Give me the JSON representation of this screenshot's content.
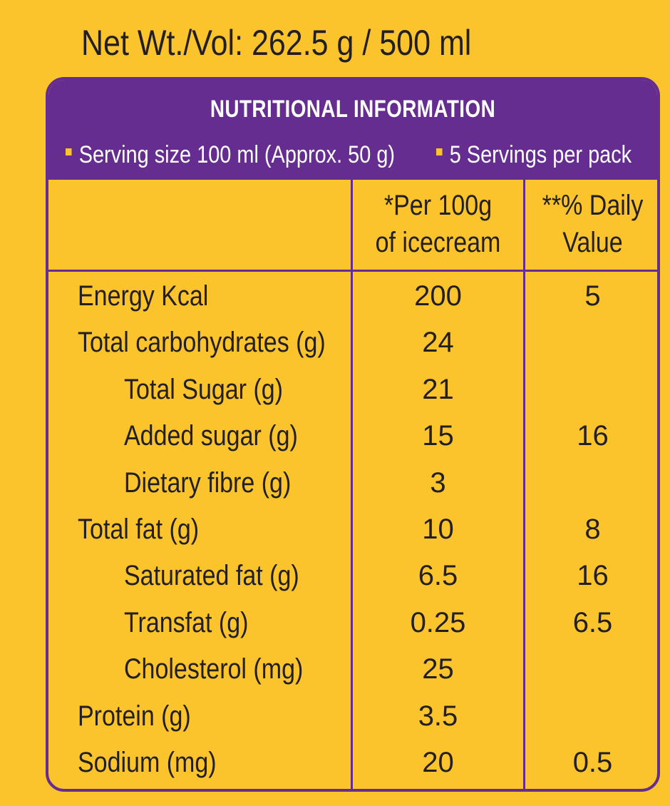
{
  "net_weight": "Net Wt./Vol: 262.5 g / 500 ml",
  "panel": {
    "title": "NUTRITIONAL INFORMATION",
    "serving_size": "Serving size 100 ml (Approx. 50 g)",
    "servings_per_pack": "5 Servings per pack"
  },
  "columns": {
    "per100_line1": "*Per 100g",
    "per100_line2": "of icecream",
    "dv_line1": "**% Daily",
    "dv_line2": "Value"
  },
  "rows": [
    {
      "label": "Energy Kcal",
      "per100": "200",
      "dv": "5",
      "indent": false
    },
    {
      "label": "Total carbohydrates (g)",
      "per100": "24",
      "dv": "",
      "indent": false
    },
    {
      "label": "Total Sugar (g)",
      "per100": "21",
      "dv": "",
      "indent": true
    },
    {
      "label": "Added sugar (g)",
      "per100": "15",
      "dv": "16",
      "indent": true
    },
    {
      "label": "Dietary fibre (g)",
      "per100": "3",
      "dv": "",
      "indent": true
    },
    {
      "label": "Total fat (g)",
      "per100": "10",
      "dv": "8",
      "indent": false
    },
    {
      "label": "Saturated fat (g)",
      "per100": "6.5",
      "dv": "16",
      "indent": true
    },
    {
      "label": "Transfat (g)",
      "per100": "0.25",
      "dv": "6.5",
      "indent": true
    },
    {
      "label": "Cholesterol (mg)",
      "per100": "25",
      "dv": "",
      "indent": true
    },
    {
      "label": "Protein (g)",
      "per100": "3.5",
      "dv": "",
      "indent": false
    },
    {
      "label": "Sodium (mg)",
      "per100": "20",
      "dv": "0.5",
      "indent": false
    }
  ],
  "colors": {
    "background": "#fbc42c",
    "accent": "#662d91",
    "text": "#231f20"
  }
}
